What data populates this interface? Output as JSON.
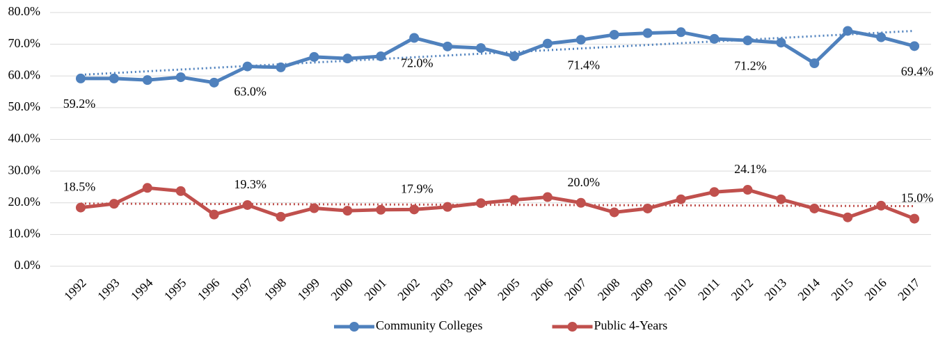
{
  "chart_data": {
    "type": "line",
    "categories": [
      "1992",
      "1993",
      "1994",
      "1995",
      "1996",
      "1997",
      "1998",
      "1999",
      "2000",
      "2001",
      "2002",
      "2003",
      "2004",
      "2005",
      "2006",
      "2007",
      "2008",
      "2009",
      "2010",
      "2011",
      "2012",
      "2013",
      "2014",
      "2015",
      "2016",
      "2017"
    ],
    "series": [
      {
        "name": "Community Colleges",
        "color": "#4f81bd",
        "values": [
          59.2,
          59.2,
          58.7,
          59.6,
          57.9,
          63.0,
          62.7,
          66.0,
          65.5,
          66.2,
          72.0,
          69.3,
          68.8,
          66.2,
          70.2,
          71.4,
          73.0,
          73.5,
          73.8,
          71.7,
          71.2,
          70.5,
          64.0,
          74.2,
          72.2,
          69.4
        ],
        "value_labels": [
          "59.2%",
          null,
          null,
          null,
          null,
          "63.0%",
          null,
          null,
          null,
          null,
          "72.0%",
          null,
          null,
          null,
          null,
          "71.4%",
          null,
          null,
          null,
          null,
          "71.2%",
          null,
          null,
          null,
          null,
          "69.4%"
        ]
      },
      {
        "name": "Public 4-Years",
        "color": "#c0504d",
        "values": [
          18.5,
          19.7,
          24.7,
          23.7,
          16.3,
          19.3,
          15.6,
          18.3,
          17.5,
          17.8,
          17.9,
          18.7,
          19.9,
          20.9,
          21.8,
          20.0,
          17.0,
          18.2,
          21.1,
          23.4,
          24.1,
          21.1,
          18.2,
          15.4,
          19.1,
          15.0
        ],
        "value_labels": [
          "18.5%",
          null,
          null,
          null,
          null,
          "19.3%",
          null,
          null,
          null,
          null,
          "17.9%",
          null,
          null,
          null,
          null,
          "20.0%",
          null,
          null,
          null,
          null,
          "24.1%",
          null,
          null,
          null,
          null,
          "15.0%"
        ]
      }
    ],
    "ylim": [
      0,
      80
    ],
    "yticks": [
      {
        "value": 0,
        "label": "0.0%"
      },
      {
        "value": 10,
        "label": "10.0%"
      },
      {
        "value": 20,
        "label": "20.0%"
      },
      {
        "value": 30,
        "label": "30.0%"
      },
      {
        "value": 40,
        "label": "40.0%"
      },
      {
        "value": 50,
        "label": "50.0%"
      },
      {
        "value": 60,
        "label": "60.0%"
      },
      {
        "value": 70,
        "label": "70.0%"
      },
      {
        "value": 80,
        "label": "80.0%"
      }
    ],
    "grid": true,
    "trendline": true,
    "legend": "bottom"
  }
}
